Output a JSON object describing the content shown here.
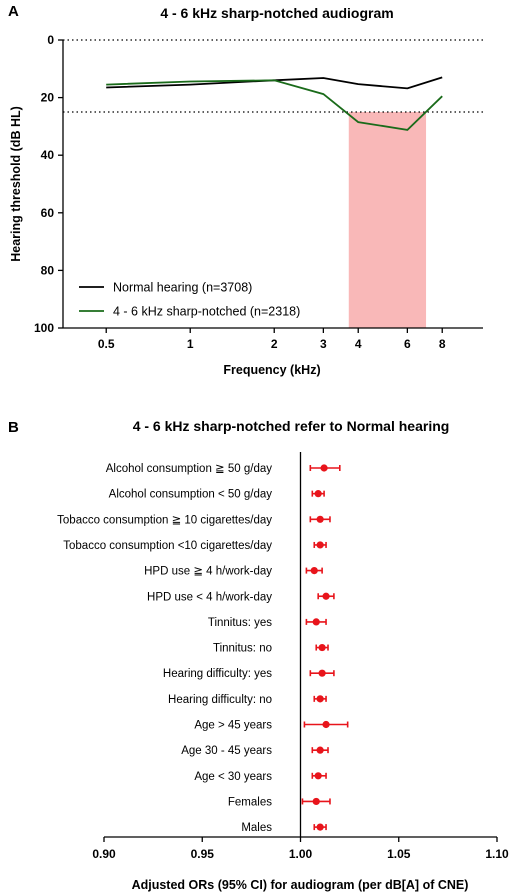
{
  "panel_a_letter": "A",
  "panel_b_letter": "B",
  "chart_data": [
    {
      "type": "line",
      "title": "4 - 6 kHz sharp-notched audiogram",
      "xlabel": "Frequency (kHz)",
      "ylabel": "Hearing threshold (dB HL)",
      "x_scale": "log",
      "x_ticks": [
        "0.5",
        "1",
        "2",
        "3",
        "4",
        "6",
        "8"
      ],
      "x": [
        0.5,
        1,
        2,
        3,
        4,
        6,
        8
      ],
      "ylim": [
        0,
        100
      ],
      "y_inverted": true,
      "y_ticks": [
        "0",
        "20",
        "40",
        "60",
        "80",
        "100"
      ],
      "reference_lines": [
        0,
        25
      ],
      "shaded_region": {
        "x_from": 3.7,
        "x_to": 7.0,
        "y_from": 25,
        "y_to": 100,
        "color": "#f9b8b8"
      },
      "legend_position": "bottom-left",
      "series": [
        {
          "name": "Normal hearing (n=3708)",
          "color": "#000000",
          "values": [
            16.5,
            15.5,
            14,
            13.2,
            15.3,
            16.8,
            13
          ]
        },
        {
          "name": "4 - 6 kHz sharp-notched (n=2318)",
          "color": "#1a6b1a",
          "values": [
            15.5,
            14.4,
            14,
            18.8,
            28.5,
            31.2,
            19.5
          ]
        }
      ]
    },
    {
      "type": "forest",
      "title": "4 - 6 kHz sharp-notched refer to Normal hearing",
      "xlabel": "Adjusted ORs (95% CI) for audiogram (per dB[A] of CNE)",
      "xlim": [
        0.9,
        1.1
      ],
      "x_ticks": [
        "0.90",
        "0.95",
        "1.00",
        "1.05",
        "1.10"
      ],
      "reference_line": 1.0,
      "point_color": "#e8141b",
      "categories": [
        "Alcohol consumption ≧ 50 g/day",
        "Alcohol consumption < 50 g/day",
        "Tobacco consumption ≧ 10 cigarettes/day",
        "Tobacco consumption <10 cigarettes/day",
        "HPD use ≧ 4 h/work-day",
        "HPD use < 4 h/work-day",
        "Tinnitus: yes",
        "Tinnitus: no",
        "Hearing difficulty: yes",
        "Hearing difficulty: no",
        "Age > 45 years",
        "Age 30 - 45 years",
        "Age < 30 years",
        "Females",
        "Males"
      ],
      "or": [
        1.012,
        1.009,
        1.01,
        1.01,
        1.007,
        1.013,
        1.008,
        1.011,
        1.011,
        1.01,
        1.013,
        1.01,
        1.009,
        1.008,
        1.01
      ],
      "ci_low": [
        1.005,
        1.006,
        1.005,
        1.007,
        1.003,
        1.009,
        1.003,
        1.008,
        1.005,
        1.007,
        1.002,
        1.006,
        1.006,
        1.001,
        1.007
      ],
      "ci_high": [
        1.02,
        1.012,
        1.015,
        1.013,
        1.011,
        1.017,
        1.013,
        1.014,
        1.017,
        1.013,
        1.024,
        1.014,
        1.013,
        1.015,
        1.013
      ]
    }
  ]
}
